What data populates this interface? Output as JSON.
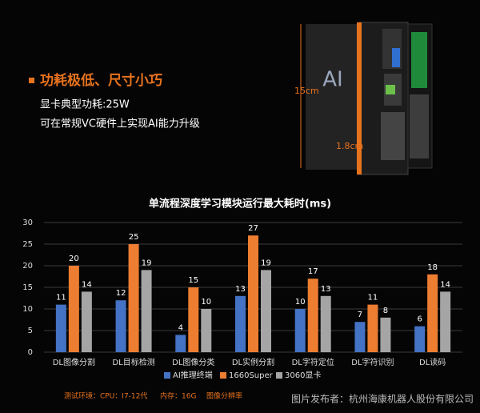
{
  "header": {
    "title": "功耗极低、尺寸小巧",
    "lines": [
      "显卡典型功耗:25W",
      "可在常规VC硬件上实现AI能力升级"
    ]
  },
  "device": {
    "labels": [
      "15cm",
      "1.8cm",
      "AI"
    ]
  },
  "chart_data": {
    "type": "bar",
    "title": "单流程深度学习模块运行最大耗时(ms)",
    "categories": [
      "DL图像分割",
      "DL目标检测",
      "DL图像分类",
      "DL实例分割",
      "DL字符定位",
      "DL字符识别",
      "DL读码"
    ],
    "series": [
      {
        "name": "AI推理终端",
        "color": "#4472c4",
        "values": [
          11,
          12,
          4,
          13,
          10,
          7,
          6
        ]
      },
      {
        "name": "1660Super",
        "color": "#ed7d31",
        "values": [
          20,
          25,
          15,
          27,
          17,
          11,
          18
        ]
      },
      {
        "name": "3060显卡",
        "color": "#a5a5a5",
        "values": [
          14,
          19,
          10,
          19,
          13,
          8,
          14
        ]
      }
    ],
    "ylim": [
      0,
      30
    ],
    "yticks": [
      0,
      5,
      10,
      15,
      20,
      25,
      30
    ],
    "grid": true,
    "legend": "bottom"
  },
  "footer": {
    "items": [
      "测试环境：CPU：I7-12代",
      "内存：16G",
      "图像分辨率"
    ],
    "watermark": "图片发布者：杭州海康机器人股份有限公司"
  }
}
